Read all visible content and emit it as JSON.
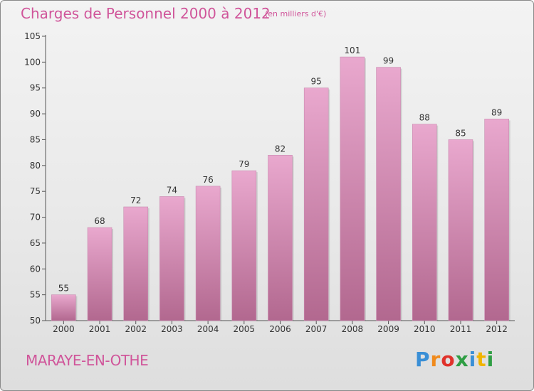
{
  "header": {
    "title": "Charges de Personnel 2000 à 2012",
    "subtitle": "(en milliers d'€)"
  },
  "footer": {
    "place": "MARAYE-EN-OTHE",
    "logo": "Proxiti",
    "logo_colors": [
      "#3a8fd6",
      "#f08a1c",
      "#e0322b",
      "#2f9e44",
      "#3a8fd6",
      "#f0b400",
      "#2f9e44"
    ]
  },
  "colors": {
    "accent": "#d0559a",
    "bar_top": "#e9a8ce",
    "bar_bottom": "#b2688f"
  },
  "chart_data": {
    "type": "bar",
    "categories": [
      "2000",
      "2001",
      "2002",
      "2003",
      "2004",
      "2005",
      "2006",
      "2007",
      "2008",
      "2009",
      "2010",
      "2011",
      "2012"
    ],
    "values": [
      55,
      68,
      72,
      74,
      76,
      79,
      82,
      95,
      101,
      99,
      88,
      85,
      89
    ],
    "ylim": [
      50,
      105
    ],
    "yticks": [
      50,
      55,
      60,
      65,
      70,
      75,
      80,
      85,
      90,
      95,
      100,
      105
    ],
    "grid": false,
    "xlabel": "",
    "ylabel": ""
  }
}
